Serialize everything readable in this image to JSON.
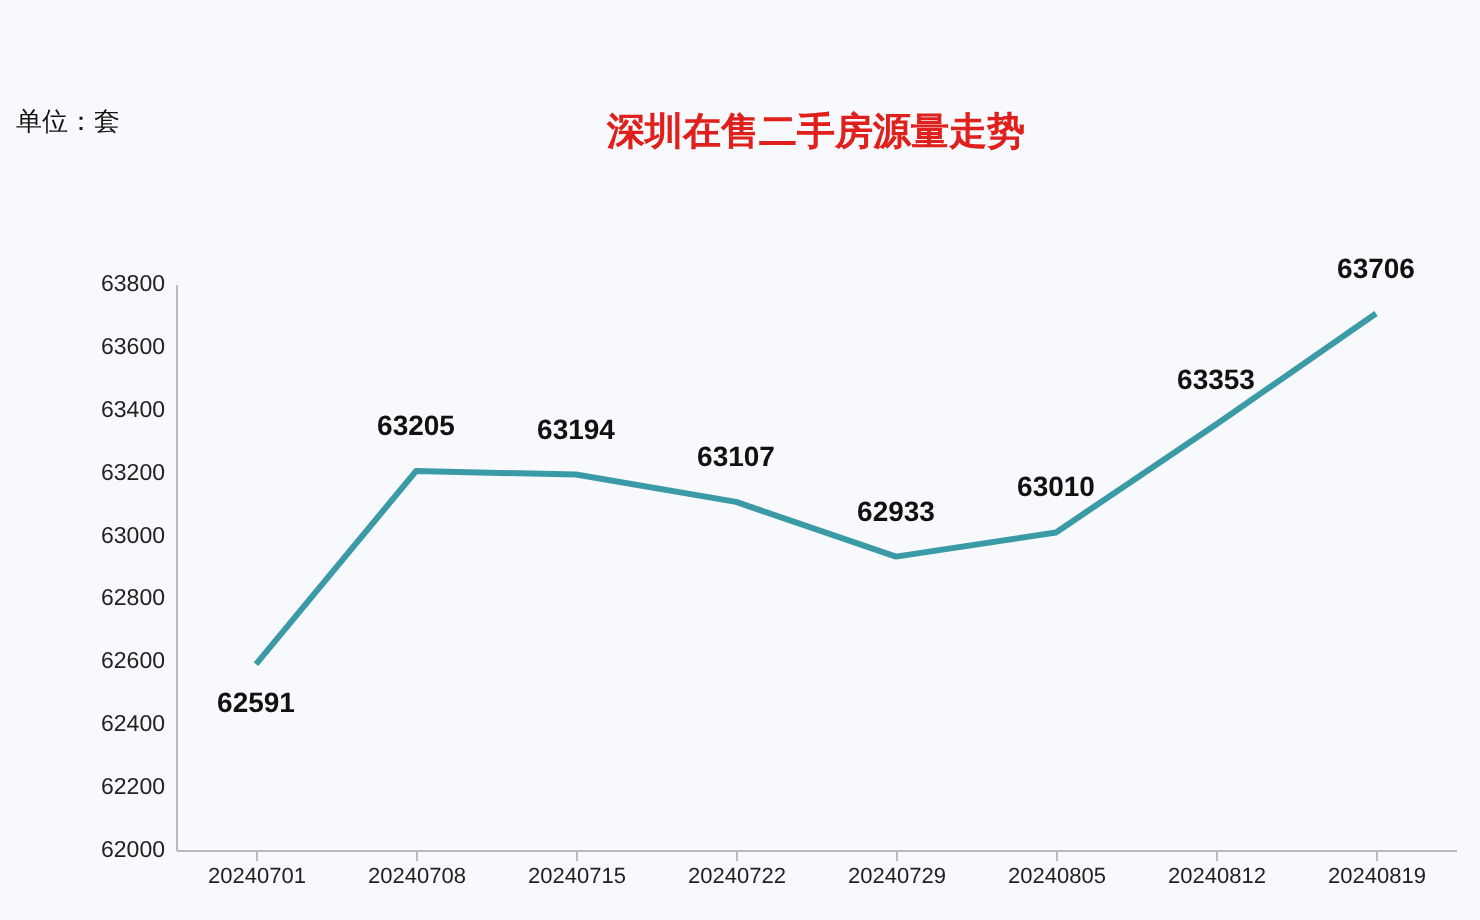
{
  "chart_data": {
    "type": "line",
    "title": "深圳在售二手房源量走势",
    "annotations": [
      "单位：套"
    ],
    "categories": [
      "20240701",
      "20240708",
      "20240715",
      "20240722",
      "20240729",
      "20240805",
      "20240812",
      "20240819"
    ],
    "series": [
      {
        "color": "#3a9aa6",
        "values": [
          62591,
          63205,
          63194,
          63107,
          62933,
          63010,
          63353,
          63706
        ]
      }
    ],
    "ylim": [
      62000,
      63800
    ],
    "yticks": [
      62000,
      62200,
      62400,
      62600,
      62800,
      63000,
      63200,
      63400,
      63600,
      63800
    ],
    "grid": false,
    "data_labels": true,
    "marker": "none",
    "line_style": "solid"
  }
}
